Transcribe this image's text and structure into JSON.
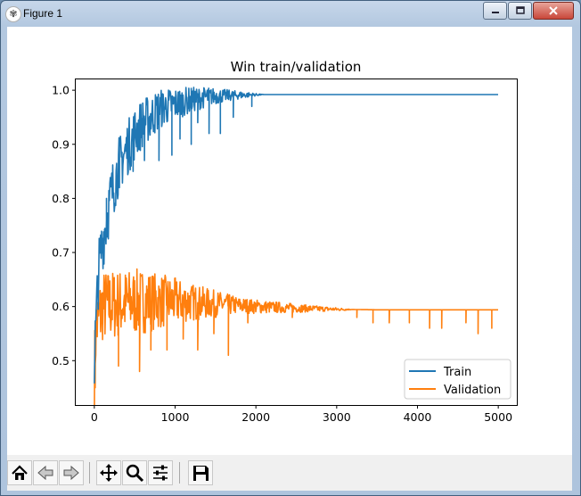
{
  "window": {
    "title": "Figure 1",
    "icons": {
      "app": "matplotlib-icon",
      "minimize": "minimize-icon",
      "maximize": "maximize-icon",
      "close": "close-icon"
    }
  },
  "toolbar": {
    "buttons": [
      {
        "name": "home-icon"
      },
      {
        "name": "back-arrow-icon"
      },
      {
        "name": "forward-arrow-icon"
      },
      {
        "name": "pan-icon"
      },
      {
        "name": "zoom-icon"
      },
      {
        "name": "configure-subplots-icon"
      },
      {
        "name": "save-icon"
      }
    ]
  },
  "chart_data": {
    "type": "line",
    "title": "Win train/validation",
    "xlabel": "",
    "ylabel": "",
    "xlim": [
      -230,
      5230
    ],
    "ylim": [
      0.418,
      1.02
    ],
    "xticks": [
      0,
      1000,
      2000,
      3000,
      4000,
      5000
    ],
    "xtick_labels": [
      "0",
      "1000",
      "2000",
      "3000",
      "4000",
      "5000"
    ],
    "yticks": [
      0.5,
      0.6,
      0.7,
      0.8,
      0.9,
      1.0
    ],
    "ytick_labels": [
      "0.5",
      "0.6",
      "0.7",
      "0.8",
      "0.9",
      "1.0"
    ],
    "grid": false,
    "legend": {
      "position": "lower-right",
      "entries": [
        "Train",
        "Validation"
      ]
    },
    "colors": {
      "Train": "#1f77b4",
      "Validation": "#ff7f0e"
    },
    "series": [
      {
        "name": "Train",
        "points": [
          [
            0,
            0.5
          ],
          [
            50,
            0.66
          ],
          [
            100,
            0.72
          ],
          [
            150,
            0.76
          ],
          [
            200,
            0.8
          ],
          [
            300,
            0.86
          ],
          [
            400,
            0.89
          ],
          [
            500,
            0.92
          ],
          [
            600,
            0.94
          ],
          [
            700,
            0.95
          ],
          [
            800,
            0.965
          ],
          [
            900,
            0.97
          ],
          [
            1000,
            0.975
          ],
          [
            1200,
            0.982
          ],
          [
            1400,
            0.988
          ],
          [
            1600,
            0.99
          ],
          [
            1800,
            0.991
          ],
          [
            2100,
            0.992
          ],
          [
            5000,
            0.992
          ]
        ],
        "noise_amplitude": [
          [
            0,
            0.06
          ],
          [
            500,
            0.05
          ],
          [
            1000,
            0.03
          ],
          [
            1600,
            0.012
          ],
          [
            2100,
            0.0
          ]
        ],
        "dips": [
          [
            150,
            0.8
          ],
          [
            310,
            0.82
          ],
          [
            480,
            0.85
          ],
          [
            620,
            0.87
          ],
          [
            800,
            0.87
          ],
          [
            960,
            0.88
          ],
          [
            1060,
            0.91
          ],
          [
            1200,
            0.9
          ],
          [
            1280,
            0.94
          ],
          [
            1420,
            0.92
          ],
          [
            1560,
            0.92
          ],
          [
            1720,
            0.95
          ],
          [
            1950,
            0.97
          ]
        ]
      },
      {
        "name": "Validation",
        "points": [
          [
            0,
            0.47
          ],
          [
            20,
            0.56
          ],
          [
            100,
            0.6
          ],
          [
            300,
            0.605
          ],
          [
            600,
            0.61
          ],
          [
            1000,
            0.61
          ],
          [
            1500,
            0.605
          ],
          [
            2000,
            0.6
          ],
          [
            2500,
            0.597
          ],
          [
            3000,
            0.595
          ],
          [
            3500,
            0.594
          ],
          [
            5000,
            0.594
          ]
        ],
        "noise_amplitude": [
          [
            0,
            0.07
          ],
          [
            600,
            0.06
          ],
          [
            1200,
            0.035
          ],
          [
            1800,
            0.015
          ],
          [
            2500,
            0.008
          ],
          [
            3100,
            0.002
          ],
          [
            3200,
            0.0
          ]
        ],
        "dips": [
          [
            10,
            0.45
          ],
          [
            300,
            0.49
          ],
          [
            560,
            0.48
          ],
          [
            700,
            0.52
          ],
          [
            900,
            0.52
          ],
          [
            1100,
            0.54
          ],
          [
            1280,
            0.52
          ],
          [
            1480,
            0.55
          ],
          [
            1660,
            0.51
          ],
          [
            1900,
            0.57
          ],
          [
            2450,
            0.58
          ],
          [
            3250,
            0.58
          ],
          [
            3450,
            0.57
          ],
          [
            3650,
            0.57
          ],
          [
            3900,
            0.57
          ],
          [
            4150,
            0.56
          ],
          [
            4300,
            0.56
          ],
          [
            4600,
            0.57
          ],
          [
            4750,
            0.55
          ],
          [
            4920,
            0.56
          ]
        ]
      }
    ]
  }
}
